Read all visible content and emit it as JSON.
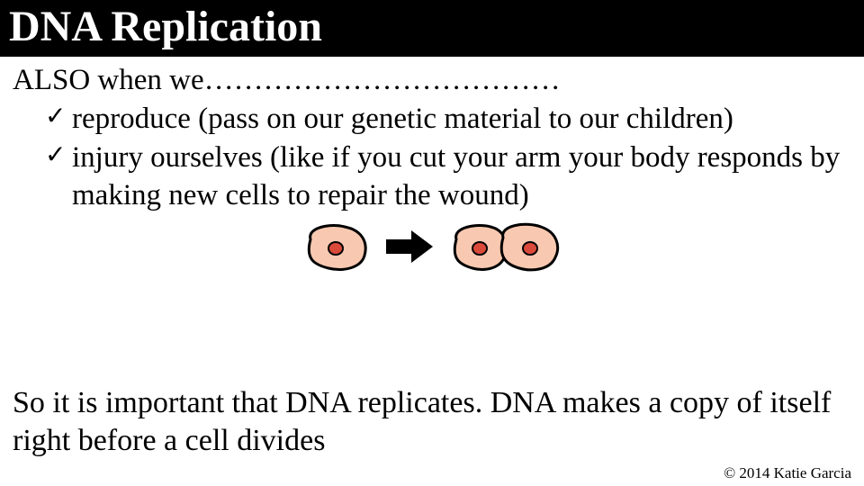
{
  "title": "DNA Replication",
  "intro": "ALSO when we………………………………",
  "bullets": [
    "reproduce (pass on our genetic material to our children)",
    "injury ourselves (like if you cut your arm your body responds by making new cells to repair the wound)"
  ],
  "closing": "So it is important that DNA replicates.  DNA makes a copy of itself right before a cell divides",
  "copyright": "© 2014 Katie Garcia",
  "diagram": {
    "cell_fill": "#f8c8b0",
    "cell_stroke": "#000000",
    "cell_stroke_width": 3,
    "nucleus_fill": "#d94a3a",
    "nucleus_stroke": "#000000",
    "arrow_fill": "#000000",
    "single_cell_width": 80,
    "single_cell_height": 60,
    "double_cell_width": 130,
    "double_cell_height": 60,
    "arrow_width": 56,
    "arrow_height": 40
  }
}
